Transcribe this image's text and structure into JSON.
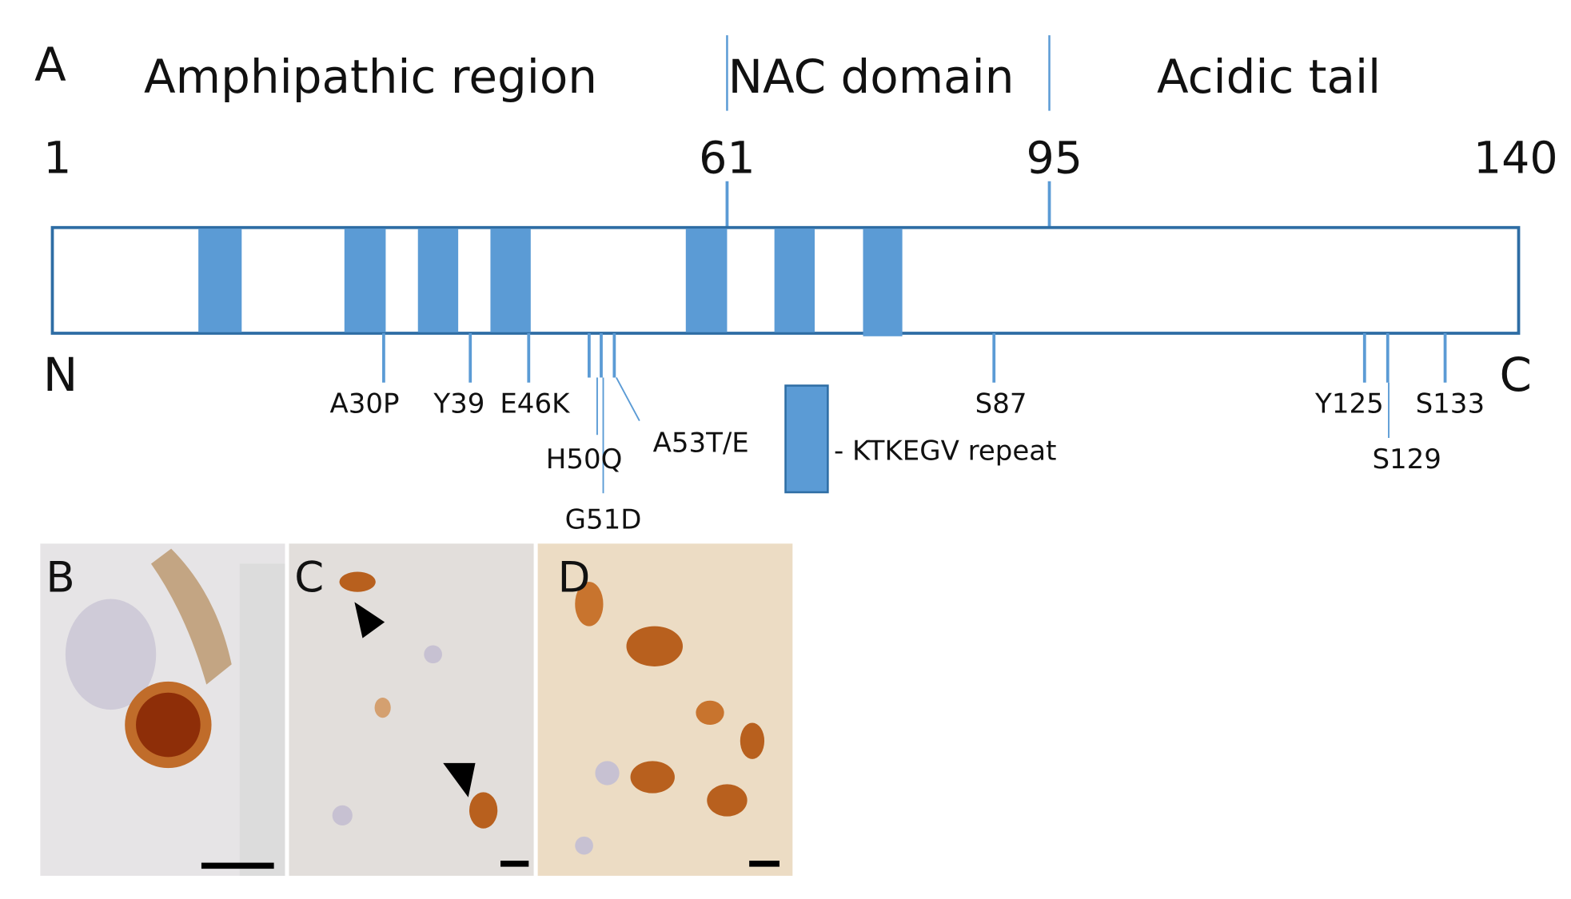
{
  "diagram": {
    "panel_a": {
      "label": "A",
      "regions": [
        "Amphipathic region",
        "NAC domain",
        "Acidic tail"
      ],
      "positions": [
        "1",
        "61",
        "95",
        "140"
      ],
      "termini": [
        "N",
        "C"
      ],
      "mutations": [
        "A30P",
        "Y39",
        "E46K",
        "H50Q",
        "G51D",
        "A53T/E",
        "S87",
        "Y125",
        "S129",
        "S133"
      ],
      "legend": "- KTKEGV repeat"
    },
    "panels": [
      "B",
      "C",
      "D"
    ]
  }
}
